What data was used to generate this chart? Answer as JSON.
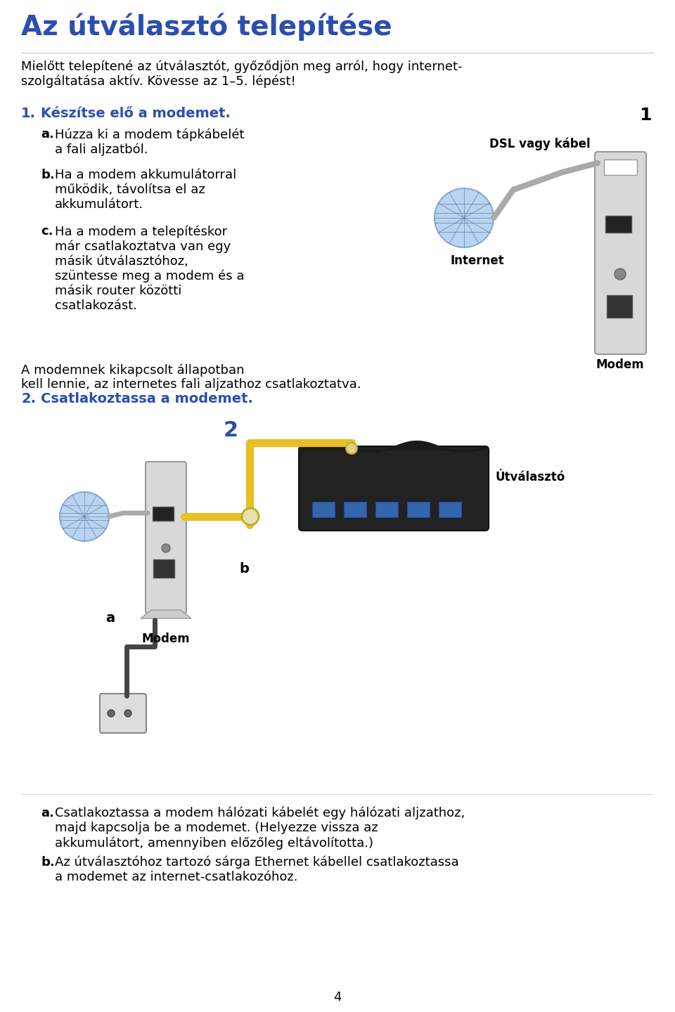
{
  "title": "Az útválasztó telepítése",
  "title_color": "#2B4EAF",
  "title_fontsize": 28,
  "bg_color": "#ffffff",
  "intro_text": "Mielőtt telepítené az útválasztót, győződjön meg arról, hogy internet-\nszolgáltatása aktív. Kövesse az 1–5. lépést!",
  "intro_fontsize": 13,
  "step1_label": "1.",
  "step1_color": "#2B4EAF",
  "step1_text": "Készítse elő a modemet.",
  "step1a_bold": "a.",
  "step1a_text": "Húzza ki a modem tápkábelét\na fali aljzatból.",
  "step1b_bold": "b.",
  "step1b_text": "Ha a modem akkumulátorral\nműködik, távolítsa el az\nakkumulátort.",
  "step1c_bold": "c.",
  "step1c_text": "Ha a modem a telepítéskor\nmár csatlakoztatva van egy\nmásik útválasztóhoz,\nszüntesse meg a modem és a\nmásik router közötti\ncsatlakozást.",
  "dsl_label": "DSL vagy kábel",
  "internet_label": "Internet",
  "modem_label1": "Modem",
  "step1_extra": "A modemnek kikapcsolt állapotban\nkell lennie, az internetes fali aljzathoz csatlakoztatva.",
  "step2_label": "2.",
  "step2_color": "#2B4EAF",
  "step2_text": "Csatlakoztassa a modemet.",
  "num2_color": "#2B4EAF",
  "utvlaszto_label": "Útválasztó",
  "modem_label2": "Modem",
  "a_label": "a",
  "b_label": "b",
  "step2a_bold": "a.",
  "step2a_text": "Csatlakoztassa a modem hálózati kábelét egy hálózati aljzathoz,\nmajd kapcsolja be a modemet. (Helyezze vissza az\nakkumulátort, amennyiben előzőleg eltávolította.)",
  "step2b_bold": "b.",
  "step2b_text": "Az útválasztóhoz tartozó sárga Ethernet kábellel csatlakoztassa\na modemet az internet-csatlakozóhoz.",
  "page_num": "4",
  "text_color": "#000000",
  "sub_fontsize": 13,
  "label_fontsize": 12
}
